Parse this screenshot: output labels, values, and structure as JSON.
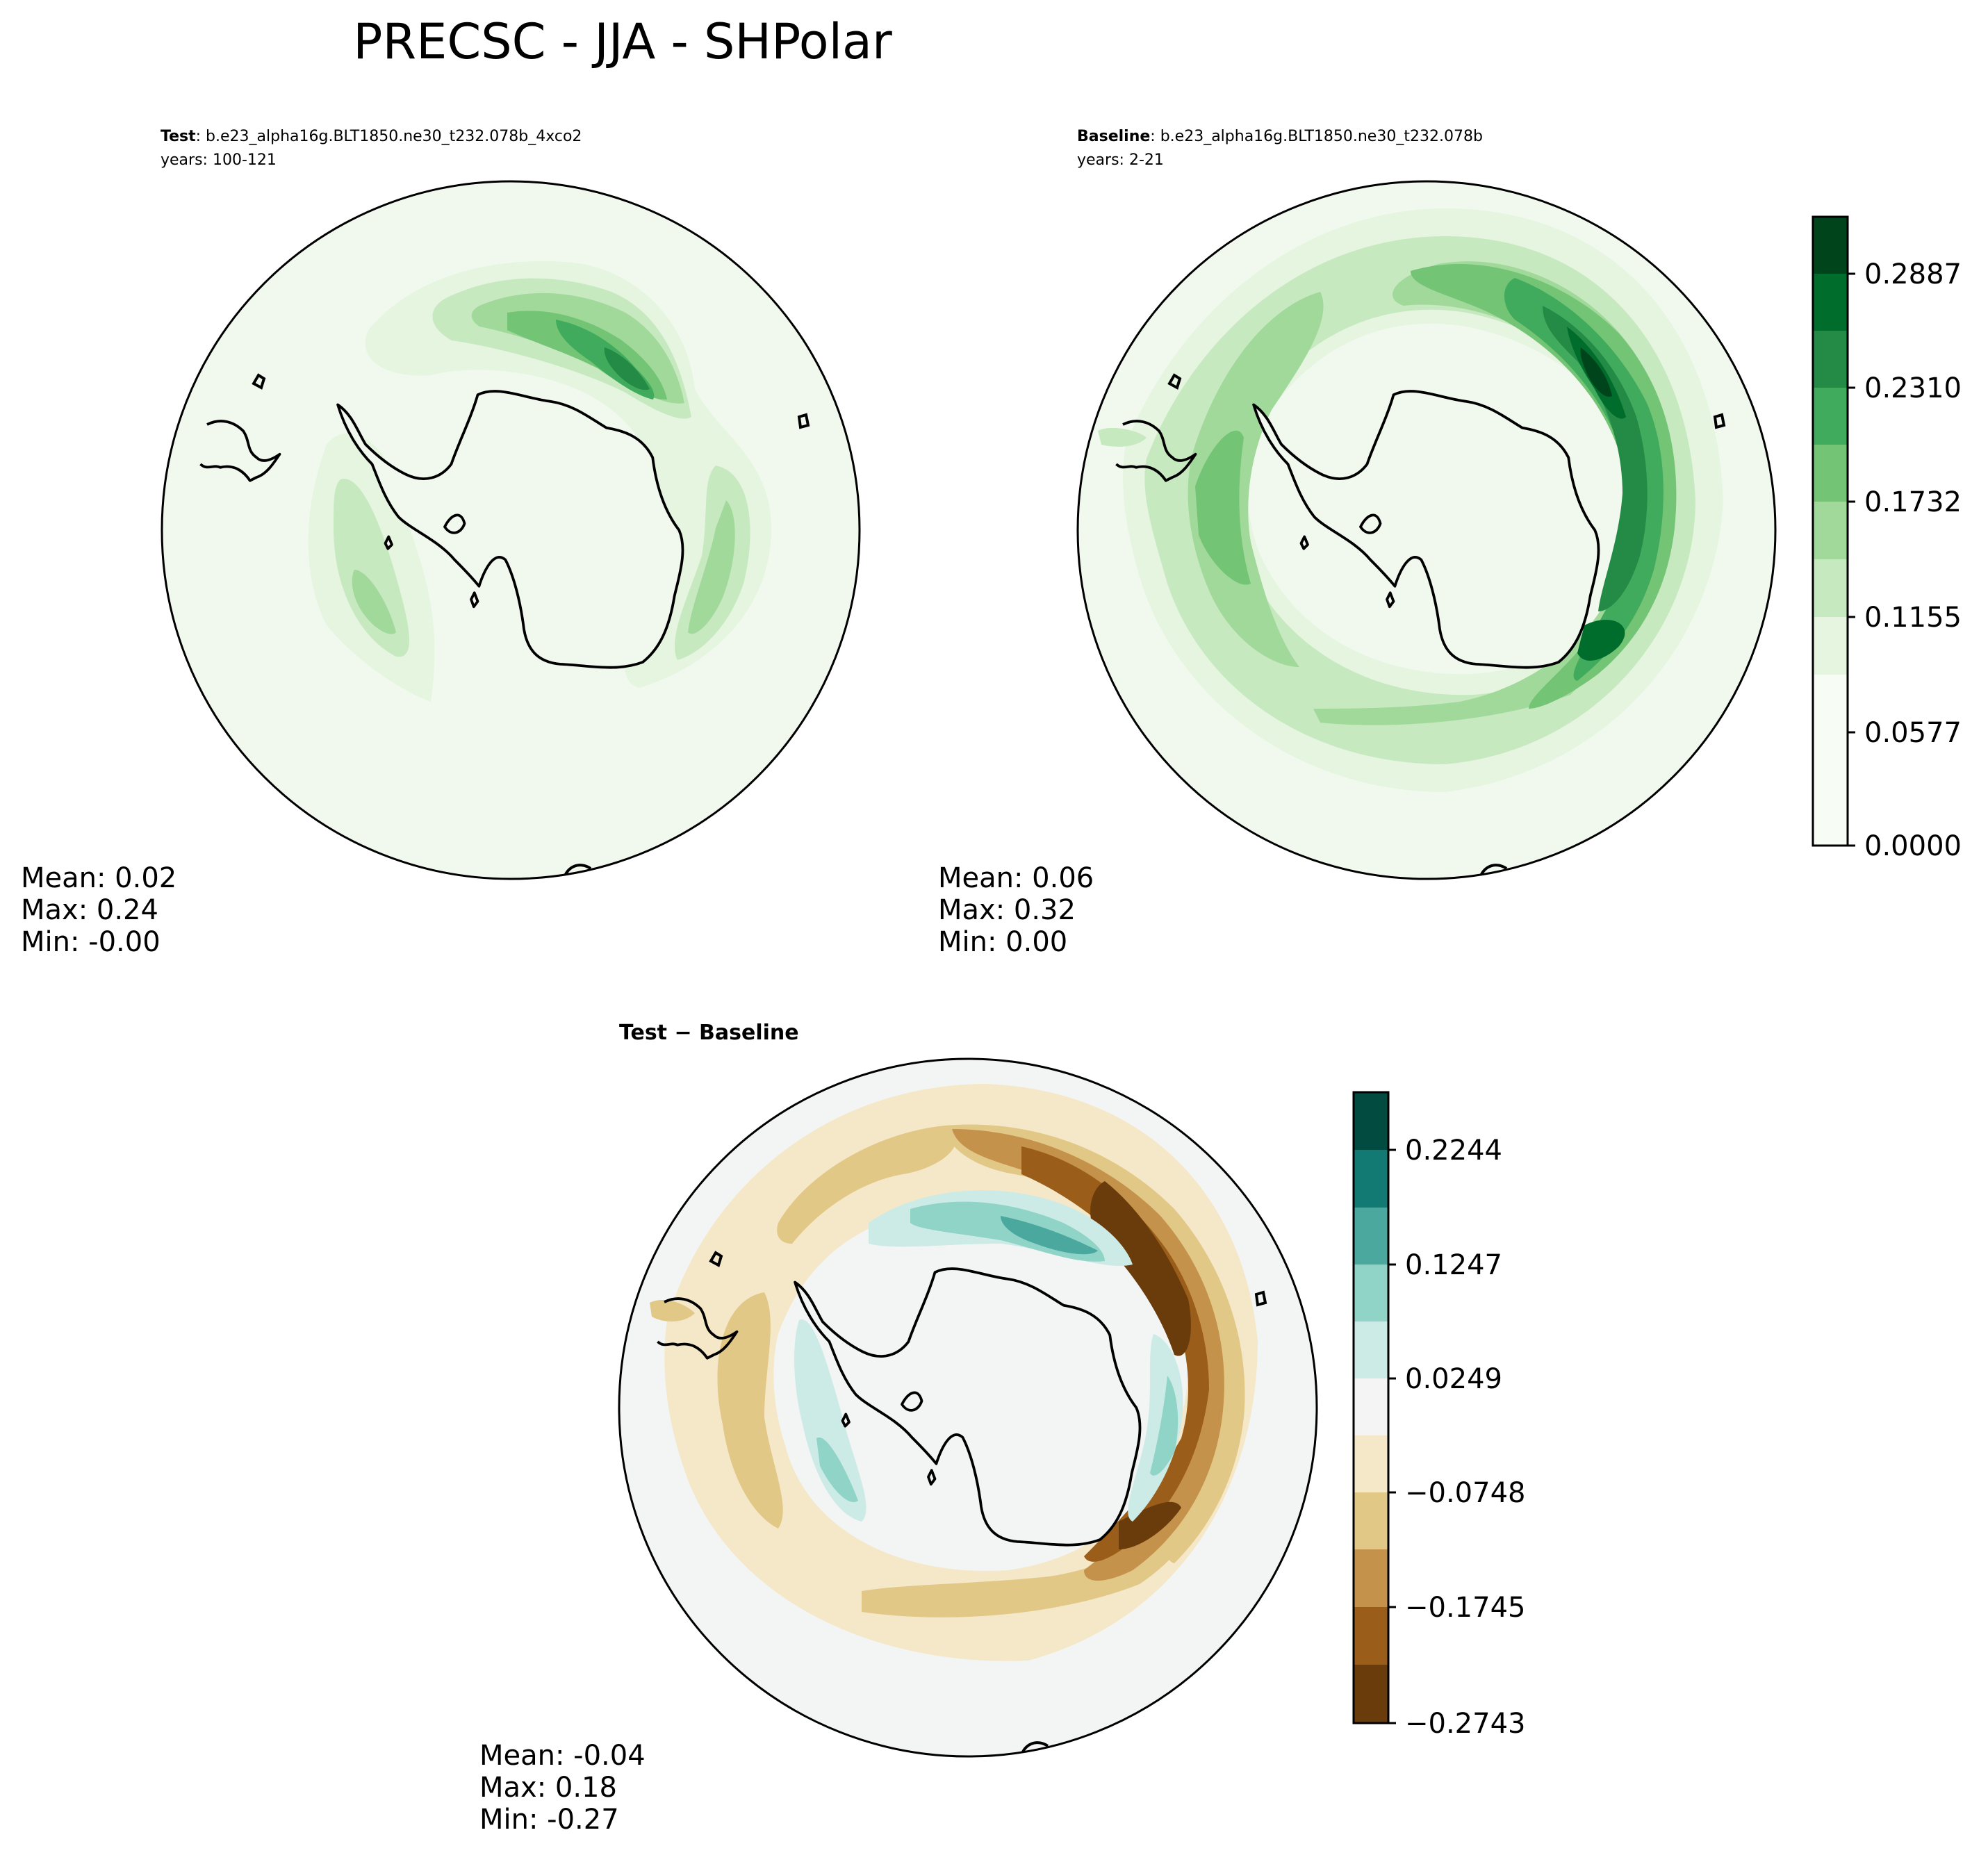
{
  "title": "PRECSC - JJA - SHPolar",
  "panels": {
    "test": {
      "label": "Test",
      "case": ": b.e23_alpha16g.BLT1850.ne30_t232.078b_4xco2",
      "years": "years: 100-121",
      "stats": [
        "Mean:  0.02",
        "Max:  0.24",
        "Min: -0.00"
      ]
    },
    "baseline": {
      "label": "Baseline",
      "case": ": b.e23_alpha16g.BLT1850.ne30_t232.078b",
      "years": "years: 2-21",
      "stats": [
        "Mean:  0.06",
        "Max:  0.32",
        "Min:  0.00"
      ]
    },
    "diff": {
      "title": "Test − Baseline",
      "stats": [
        "Mean: -0.04",
        "Max:  0.18",
        "Min: -0.27"
      ]
    }
  },
  "chart_data": [
    {
      "type": "heatmap",
      "name": "Test",
      "projection": "south-polar-stereographic",
      "colormap": [
        "#f7fcf5",
        "#e5f5e0",
        "#c7e9c0",
        "#a1d99b",
        "#74c476",
        "#41ab5d",
        "#238b45",
        "#006d2c",
        "#00441b"
      ],
      "levels": [
        0.0,
        0.0577,
        0.1155,
        0.1732,
        0.231,
        0.2887
      ],
      "stats": {
        "mean": 0.02,
        "max": 0.24,
        "min": -0.0
      }
    },
    {
      "type": "heatmap",
      "name": "Baseline",
      "projection": "south-polar-stereographic",
      "colormap": [
        "#f7fcf5",
        "#e5f5e0",
        "#c7e9c0",
        "#a1d99b",
        "#74c476",
        "#41ab5d",
        "#238b45",
        "#006d2c",
        "#00441b"
      ],
      "levels": [
        0.0,
        0.0577,
        0.1155,
        0.1732,
        0.231,
        0.2887
      ],
      "colorbar": {
        "ticks": [
          "0.2887",
          "0.2310",
          "0.1732",
          "0.1155",
          "0.0577",
          "0.0000"
        ]
      },
      "stats": {
        "mean": 0.06,
        "max": 0.32,
        "min": 0.0
      }
    },
    {
      "type": "heatmap",
      "name": "Test − Baseline",
      "projection": "south-polar-stereographic",
      "colormap": [
        "#01665e",
        "#1d7d75",
        "#4fa89f",
        "#8fd4c8",
        "#c7eae5",
        "#f5f5f5",
        "#f6e8c3",
        "#dfc27d",
        "#bf812d",
        "#8c510a",
        "#543005"
      ],
      "levels": [
        -0.2743,
        -0.1745,
        -0.0748,
        0.0249,
        0.1247,
        0.2244
      ],
      "colorbar": {
        "ticks": [
          "0.2244",
          "0.1247",
          "0.0249",
          "−0.0748",
          "−0.1745",
          "−0.2743"
        ]
      },
      "stats": {
        "mean": -0.04,
        "max": 0.18,
        "min": -0.27
      }
    }
  ],
  "colors": {
    "green_bg": "#f1f9ef",
    "green_ramp": [
      "#00441b",
      "#006d2c",
      "#238b45",
      "#41ab5d",
      "#74c476",
      "#a1d99b",
      "#c7e9c0",
      "#e5f5e0",
      "#f7fcf5"
    ],
    "diff_bg": "#f3f5f4",
    "diff_ramp": [
      "#014b40",
      "#127a72",
      "#4aa89f",
      "#90d4c8",
      "#cdebe6",
      "#f4f4f4",
      "#f5e8c8",
      "#e2c887",
      "#c4924a",
      "#9a5e1a",
      "#6a3c0c"
    ],
    "coast": "#000000"
  }
}
